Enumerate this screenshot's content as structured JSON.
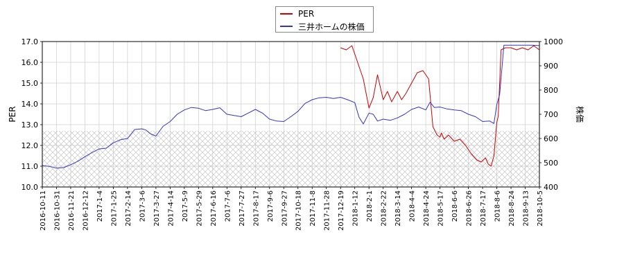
{
  "chart_data": {
    "type": "line",
    "legend": {
      "placement": "top-center",
      "entries": [
        "PER",
        "三井ホームの株価"
      ]
    },
    "ylabel_left": "PER",
    "ylabel_right": "株価",
    "ylim_left": [
      10.0,
      17.0
    ],
    "ylim_right": [
      400,
      1000
    ],
    "yticks_left": [
      "10.0",
      "11.0",
      "12.0",
      "13.0",
      "14.0",
      "15.0",
      "16.0",
      "17.0"
    ],
    "yticks_right": [
      "400",
      "500",
      "600",
      "700",
      "800",
      "900",
      "1000"
    ],
    "xticks": [
      "2016-10-11",
      "2016-10-31",
      "2016-11-21",
      "2016-12-12",
      "2017-1-4",
      "2017-1-25",
      "2017-2-14",
      "2017-3-6",
      "2017-3-27",
      "2017-4-14",
      "2017-5-9",
      "2017-5-29",
      "2017-6-16",
      "2017-7-6",
      "2017-7-27",
      "2017-8-17",
      "2017-9-6",
      "2017-9-27",
      "2017-10-18",
      "2017-11-8",
      "2017-11-28",
      "2017-12-19",
      "2018-1-12",
      "2018-2-1",
      "2018-2-22",
      "2018-3-14",
      "2018-4-4",
      "2018-4-24",
      "2018-5-17",
      "2018-6-6",
      "2018-6-26",
      "2018-7-17",
      "2018-8-6",
      "2018-8-24",
      "2018-9-13",
      "2018-10-5"
    ],
    "grid": true,
    "hatched_band_left_axis": [
      10.0,
      12.7
    ],
    "colors": {
      "PER": "#cc0000",
      "price": "#3333cc",
      "grid": "#cccccc",
      "hatch": "#bbbbbb"
    },
    "series": [
      {
        "name": "PER",
        "axis": "left",
        "x_index": [
          21.0,
          21.4,
          21.8,
          22.2,
          22.6,
          23.0,
          23.3,
          23.6,
          23.8,
          24.0,
          24.3,
          24.6,
          25.0,
          25.3,
          25.6,
          26.0,
          26.4,
          26.8,
          27.2,
          27.5,
          27.8,
          28.0,
          28.1,
          28.3,
          28.6,
          29.0,
          29.4,
          29.8,
          30.2,
          30.6,
          30.9,
          31.2,
          31.4,
          31.6,
          31.8,
          31.9,
          32.0,
          32.1,
          32.3,
          32.6,
          33.0,
          33.4,
          33.8,
          34.2,
          34.6,
          35.0
        ],
        "values": [
          16.7,
          16.6,
          16.8,
          16.0,
          15.2,
          13.8,
          14.3,
          15.4,
          14.8,
          14.2,
          14.6,
          14.1,
          14.6,
          14.2,
          14.5,
          15.0,
          15.5,
          15.6,
          15.2,
          12.9,
          12.5,
          12.4,
          12.6,
          12.3,
          12.5,
          12.2,
          12.3,
          12.0,
          11.6,
          11.3,
          11.2,
          11.4,
          11.1,
          11.0,
          11.5,
          12.3,
          13.1,
          13.4,
          16.6,
          16.7,
          16.7,
          16.6,
          16.7,
          16.6,
          16.8,
          16.6
        ]
      },
      {
        "name": "三井ホームの株価",
        "axis": "right",
        "x_index": [
          0.0,
          0.5,
          1.0,
          1.5,
          2.0,
          2.5,
          3.0,
          3.5,
          4.0,
          4.5,
          5.0,
          5.5,
          6.0,
          6.5,
          7.0,
          7.3,
          7.6,
          8.0,
          8.5,
          9.0,
          9.5,
          10.0,
          10.5,
          11.0,
          11.5,
          12.0,
          12.5,
          13.0,
          13.5,
          14.0,
          14.5,
          15.0,
          15.5,
          16.0,
          16.5,
          17.0,
          17.5,
          18.0,
          18.5,
          19.0,
          19.5,
          20.0,
          20.5,
          21.0,
          21.5,
          22.0,
          22.3,
          22.6,
          23.0,
          23.3,
          23.6,
          24.0,
          24.5,
          25.0,
          25.5,
          26.0,
          26.5,
          27.0,
          27.3,
          27.6,
          28.0,
          28.5,
          29.0,
          29.5,
          30.0,
          30.5,
          31.0,
          31.5,
          31.8,
          32.0,
          32.2,
          32.5,
          33.0,
          33.5,
          34.0,
          34.5,
          35.0
        ],
        "values": [
          488,
          485,
          478,
          480,
          492,
          506,
          525,
          542,
          557,
          560,
          582,
          595,
          600,
          637,
          640,
          635,
          620,
          610,
          650,
          670,
          700,
          718,
          728,
          725,
          715,
          720,
          727,
          700,
          695,
          690,
          705,
          720,
          705,
          680,
          672,
          670,
          690,
          712,
          745,
          760,
          768,
          770,
          765,
          770,
          760,
          748,
          688,
          660,
          705,
          700,
          672,
          680,
          675,
          685,
          700,
          720,
          730,
          718,
          750,
          728,
          730,
          722,
          718,
          715,
          700,
          690,
          670,
          672,
          662,
          740,
          780,
          985,
          985,
          985,
          985,
          985,
          983
        ]
      }
    ]
  }
}
